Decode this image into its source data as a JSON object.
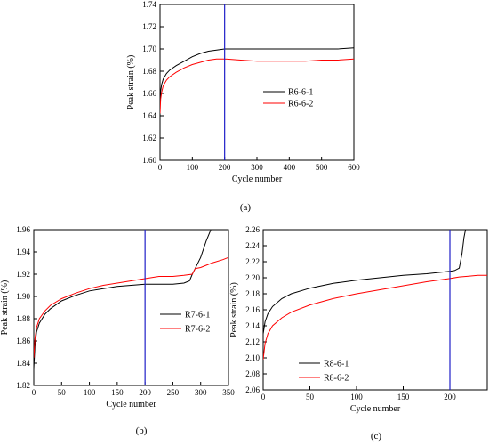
{
  "chart_data": [
    {
      "panel": "(a)",
      "type": "line",
      "xlabel": "Cycle number",
      "ylabel": "Peak strain (%)",
      "xlim": [
        0,
        600
      ],
      "ylim": [
        1.6,
        1.74
      ],
      "xticks": [
        0,
        100,
        200,
        300,
        400,
        500,
        600
      ],
      "yticks": [
        "1.60",
        "1.62",
        "1.64",
        "1.66",
        "1.68",
        "1.70",
        "1.72",
        "1.74"
      ],
      "vline": 200,
      "legend_position": "right",
      "series": [
        {
          "name": "R6-6-1",
          "color": "#000000",
          "x": [
            0,
            2,
            5,
            10,
            20,
            30,
            50,
            75,
            100,
            125,
            150,
            175,
            200,
            250,
            300,
            350,
            400,
            450,
            500,
            550,
            600
          ],
          "y": [
            1.65,
            1.662,
            1.668,
            1.673,
            1.678,
            1.681,
            1.685,
            1.689,
            1.693,
            1.696,
            1.698,
            1.699,
            1.7,
            1.7,
            1.7,
            1.7,
            1.7,
            1.7,
            1.7,
            1.7,
            1.701
          ]
        },
        {
          "name": "R6-6-2",
          "color": "#ff0000",
          "x": [
            0,
            2,
            5,
            10,
            20,
            30,
            50,
            75,
            100,
            125,
            150,
            175,
            200,
            250,
            300,
            350,
            400,
            450,
            500,
            550,
            600
          ],
          "y": [
            1.642,
            1.655,
            1.661,
            1.667,
            1.672,
            1.675,
            1.679,
            1.683,
            1.686,
            1.688,
            1.69,
            1.691,
            1.691,
            1.69,
            1.689,
            1.689,
            1.689,
            1.689,
            1.69,
            1.69,
            1.691
          ]
        }
      ]
    },
    {
      "panel": "(b)",
      "type": "line",
      "xlabel": "Cycle number",
      "ylabel": "Peak strain (%)",
      "xlim": [
        0,
        350
      ],
      "ylim": [
        1.82,
        1.96
      ],
      "xticks": [
        0,
        50,
        100,
        150,
        200,
        250,
        300,
        350
      ],
      "yticks": [
        "1.82",
        "1.84",
        "1.86",
        "1.88",
        "1.90",
        "1.92",
        "1.94",
        "1.96"
      ],
      "vline": 200,
      "legend_position": "bottom-right",
      "series": [
        {
          "name": "R7-6-1",
          "color": "#000000",
          "x": [
            0,
            2,
            5,
            10,
            20,
            30,
            50,
            75,
            100,
            125,
            150,
            175,
            200,
            225,
            250,
            270,
            280,
            285,
            290,
            300,
            310,
            320
          ],
          "y": [
            1.835,
            1.855,
            1.868,
            1.876,
            1.884,
            1.889,
            1.896,
            1.901,
            1.905,
            1.907,
            1.909,
            1.91,
            1.911,
            1.911,
            1.911,
            1.912,
            1.914,
            1.92,
            1.925,
            1.935,
            1.95,
            1.962
          ]
        },
        {
          "name": "R7-6-2",
          "color": "#ff0000",
          "x": [
            0,
            2,
            5,
            10,
            20,
            30,
            50,
            75,
            100,
            125,
            150,
            175,
            200,
            225,
            250,
            270,
            285,
            290,
            300,
            310,
            320,
            340,
            350
          ],
          "y": [
            1.845,
            1.862,
            1.872,
            1.88,
            1.887,
            1.892,
            1.898,
            1.903,
            1.907,
            1.91,
            1.912,
            1.914,
            1.916,
            1.918,
            1.918,
            1.919,
            1.92,
            1.925,
            1.926,
            1.928,
            1.93,
            1.933,
            1.935
          ]
        }
      ]
    },
    {
      "panel": "(c)",
      "type": "line",
      "xlabel": "Cycle number",
      "ylabel": "Peak strain (%)",
      "xlim": [
        0,
        240
      ],
      "ylim": [
        2.06,
        2.26
      ],
      "xticks": [
        0,
        50,
        100,
        150,
        200
      ],
      "yticks": [
        "2.06",
        "2.08",
        "2.10",
        "2.12",
        "2.14",
        "2.16",
        "2.18",
        "2.20",
        "2.22",
        "2.24",
        "2.26"
      ],
      "vline": 200,
      "legend_position": "bottom-left",
      "series": [
        {
          "name": "R8-6-1",
          "color": "#000000",
          "x": [
            0,
            2,
            5,
            10,
            20,
            30,
            50,
            75,
            100,
            125,
            150,
            175,
            200,
            205,
            210,
            213,
            215,
            217
          ],
          "y": [
            2.13,
            2.145,
            2.155,
            2.164,
            2.174,
            2.18,
            2.187,
            2.193,
            2.197,
            2.2,
            2.203,
            2.205,
            2.208,
            2.209,
            2.212,
            2.23,
            2.25,
            2.262
          ]
        },
        {
          "name": "R8-6-2",
          "color": "#ff0000",
          "x": [
            0,
            2,
            5,
            10,
            20,
            30,
            50,
            75,
            100,
            125,
            150,
            175,
            200,
            210,
            220,
            230,
            240
          ],
          "y": [
            2.098,
            2.118,
            2.13,
            2.14,
            2.15,
            2.157,
            2.166,
            2.174,
            2.18,
            2.185,
            2.19,
            2.195,
            2.199,
            2.201,
            2.202,
            2.203,
            2.203
          ]
        }
      ]
    }
  ]
}
